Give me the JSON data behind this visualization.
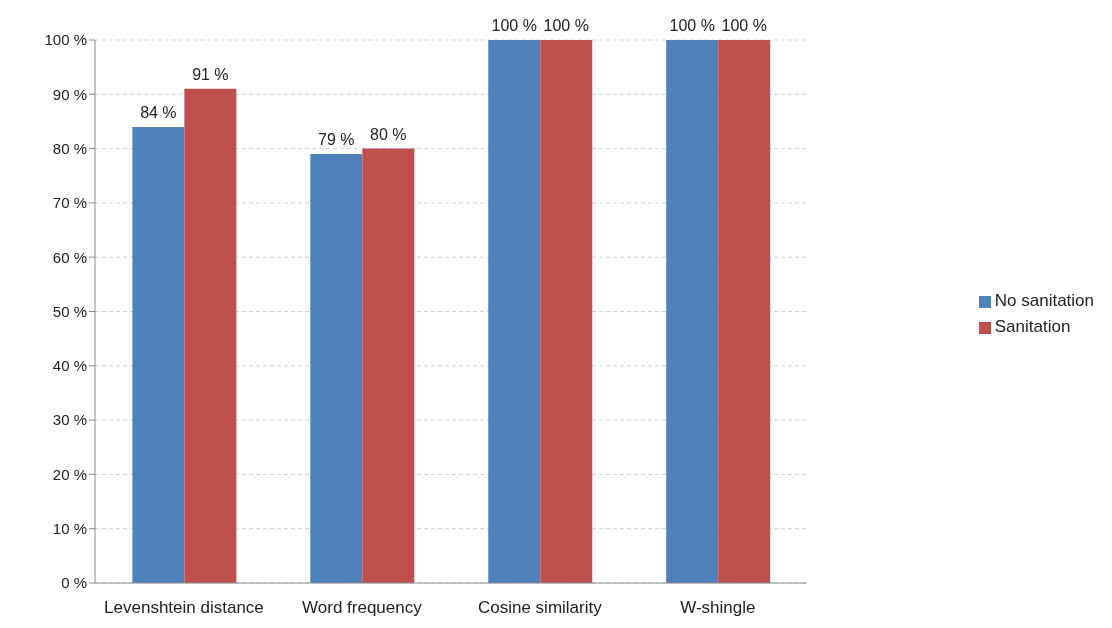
{
  "chart_data": {
    "type": "bar",
    "categories": [
      "Levenshtein distance",
      "Word frequency",
      "Cosine similarity",
      "W-shingle"
    ],
    "series": [
      {
        "name": "No sanitation",
        "color": "#4f81bd",
        "values": [
          84,
          79,
          100,
          100
        ],
        "value_labels": [
          "84 %",
          "79 %",
          "100 %",
          "100 %"
        ]
      },
      {
        "name": "Sanitation",
        "color": "#c0504d",
        "values": [
          91,
          80,
          100,
          100
        ],
        "value_labels": [
          "91 %",
          "80 %",
          "100 %",
          "100 %"
        ]
      }
    ],
    "ylim": [
      0,
      100
    ],
    "yticks": [
      {
        "value": 0,
        "label": "0 %"
      },
      {
        "value": 10,
        "label": "10 %"
      },
      {
        "value": 20,
        "label": "20 %"
      },
      {
        "value": 30,
        "label": "30 %"
      },
      {
        "value": 40,
        "label": "40 %"
      },
      {
        "value": 50,
        "label": "50 %"
      },
      {
        "value": 60,
        "label": "60 %"
      },
      {
        "value": 70,
        "label": "70 %"
      },
      {
        "value": 80,
        "label": "80 %"
      },
      {
        "value": 90,
        "label": "90 %"
      },
      {
        "value": 100,
        "label": "100 %"
      }
    ],
    "grid": "y",
    "legend": "right"
  }
}
